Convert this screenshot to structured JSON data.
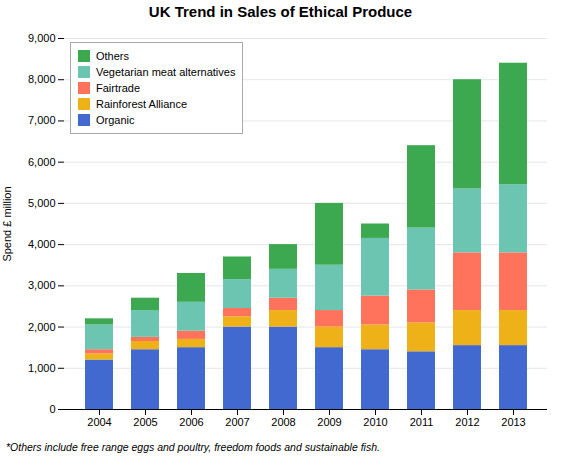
{
  "chart_data": {
    "type": "bar",
    "stacked": true,
    "title": "UK Trend in Sales of Ethical Produce",
    "ylabel": "Spend £ million",
    "caption": "*Others include free range eggs and poultry, freedom foods and sustainable fish.",
    "categories": [
      "2004",
      "2005",
      "2006",
      "2007",
      "2008",
      "2009",
      "2010",
      "2011",
      "2012",
      "2013"
    ],
    "series": [
      {
        "name": "Organic",
        "values": [
          1200,
          1450,
          1500,
          2000,
          2000,
          1500,
          1450,
          1400,
          1550,
          1550
        ]
      },
      {
        "name": "Rainforest Alliance",
        "values": [
          150,
          200,
          200,
          250,
          400,
          500,
          600,
          700,
          850,
          850
        ]
      },
      {
        "name": "Fairtrade",
        "values": [
          100,
          100,
          200,
          200,
          300,
          400,
          700,
          800,
          1400,
          1400
        ]
      },
      {
        "name": "Vegetarian meat alternatives",
        "values": [
          600,
          650,
          700,
          700,
          700,
          1100,
          1400,
          1500,
          1550,
          1650
        ]
      },
      {
        "name": "Others",
        "values": [
          150,
          300,
          700,
          550,
          600,
          1500,
          350,
          2000,
          2650,
          2950
        ]
      }
    ],
    "ylim": [
      0,
      9000
    ],
    "yticks": [
      0,
      {
        "value": 1000,
        "label": "1,000"
      },
      {
        "value": 2000,
        "label": "2,000"
      },
      {
        "value": 3000,
        "label": "3,000"
      },
      {
        "value": 4000,
        "label": "4,000"
      },
      {
        "value": 5000,
        "label": "5,000"
      },
      {
        "value": 6000,
        "label": "6,000"
      },
      {
        "value": 7000,
        "label": "7,000"
      },
      {
        "value": 8000,
        "label": "8,000"
      },
      {
        "value": 9000,
        "label": "9,000"
      }
    ],
    "grid": true,
    "legend": "upper left"
  }
}
